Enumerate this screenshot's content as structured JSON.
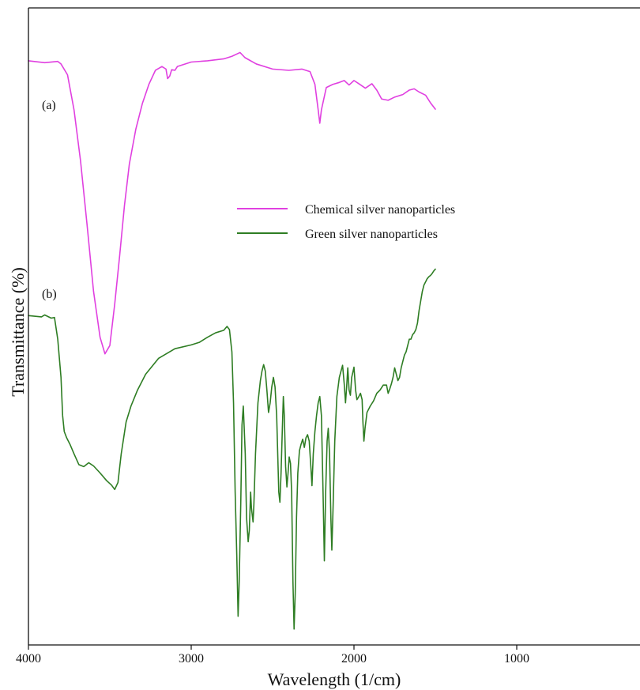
{
  "chart_data": {
    "type": "line",
    "title": "",
    "xlabel": "Wavelength (1/cm)",
    "ylabel": "Transmittance (%)",
    "xlim": [
      4000,
      1500
    ],
    "x_ticks": [
      {
        "value": 4000,
        "label": "4000"
      },
      {
        "value": 3000,
        "label": "3000"
      },
      {
        "value": 2000,
        "label": "2000"
      },
      {
        "value": 1000,
        "label": "1000"
      }
    ],
    "y_ticks_shown": false,
    "grid": false,
    "legend_position": "center",
    "panel_labels": [
      {
        "text": "(a)",
        "series": "Chemical silver nanoparticles"
      },
      {
        "text": "(b)",
        "series": "Green silver nanoparticles"
      }
    ],
    "series": [
      {
        "name": "Chemical silver nanoparticles",
        "label": "(a)",
        "color": "#e040e0",
        "y_scale": "relative transmittance, 100 = top of plot",
        "points": [
          [
            4000,
            91.7
          ],
          [
            3900,
            91.4
          ],
          [
            3820,
            91.6
          ],
          [
            3800,
            91.2
          ],
          [
            3760,
            89.5
          ],
          [
            3720,
            84.0
          ],
          [
            3680,
            76.0
          ],
          [
            3640,
            66.0
          ],
          [
            3600,
            55.5
          ],
          [
            3560,
            48.3
          ],
          [
            3530,
            45.7
          ],
          [
            3500,
            47.0
          ],
          [
            3470,
            53.5
          ],
          [
            3440,
            61.0
          ],
          [
            3410,
            69.0
          ],
          [
            3380,
            75.5
          ],
          [
            3340,
            81.0
          ],
          [
            3300,
            85.0
          ],
          [
            3260,
            88.0
          ],
          [
            3220,
            90.2
          ],
          [
            3180,
            90.8
          ],
          [
            3155,
            90.4
          ],
          [
            3145,
            88.9
          ],
          [
            3132,
            89.3
          ],
          [
            3120,
            90.3
          ],
          [
            3100,
            90.2
          ],
          [
            3085,
            90.8
          ],
          [
            3000,
            91.5
          ],
          [
            2900,
            91.7
          ],
          [
            2800,
            92.0
          ],
          [
            2750,
            92.4
          ],
          [
            2700,
            93.0
          ],
          [
            2670,
            92.2
          ],
          [
            2600,
            91.2
          ],
          [
            2500,
            90.4
          ],
          [
            2400,
            90.2
          ],
          [
            2320,
            90.4
          ],
          [
            2270,
            90.0
          ],
          [
            2240,
            88.0
          ],
          [
            2220,
            84.0
          ],
          [
            2210,
            81.9
          ],
          [
            2200,
            84.0
          ],
          [
            2170,
            87.5
          ],
          [
            2130,
            88.0
          ],
          [
            2090,
            88.3
          ],
          [
            2060,
            88.6
          ],
          [
            2030,
            87.9
          ],
          [
            2000,
            88.6
          ],
          [
            1970,
            88.1
          ],
          [
            1930,
            87.4
          ],
          [
            1890,
            88.1
          ],
          [
            1860,
            87.1
          ],
          [
            1830,
            85.7
          ],
          [
            1790,
            85.5
          ],
          [
            1750,
            86.0
          ],
          [
            1700,
            86.4
          ],
          [
            1660,
            87.1
          ],
          [
            1630,
            87.3
          ],
          [
            1600,
            86.8
          ],
          [
            1560,
            86.3
          ],
          [
            1530,
            85.1
          ],
          [
            1500,
            84.1
          ]
        ]
      },
      {
        "name": "Green silver nanoparticles",
        "label": "(b)",
        "color": "#2e7d23",
        "y_scale": "relative transmittance, 100 = top of plot",
        "points": [
          [
            4000,
            51.7
          ],
          [
            3920,
            51.5
          ],
          [
            3900,
            51.8
          ],
          [
            3860,
            51.3
          ],
          [
            3840,
            51.4
          ],
          [
            3820,
            48.0
          ],
          [
            3800,
            42.0
          ],
          [
            3790,
            36.0
          ],
          [
            3780,
            33.5
          ],
          [
            3765,
            32.5
          ],
          [
            3745,
            31.5
          ],
          [
            3720,
            30.0
          ],
          [
            3690,
            28.3
          ],
          [
            3660,
            28.0
          ],
          [
            3630,
            28.6
          ],
          [
            3600,
            28.1
          ],
          [
            3560,
            27.0
          ],
          [
            3520,
            25.8
          ],
          [
            3490,
            25.1
          ],
          [
            3470,
            24.4
          ],
          [
            3450,
            25.5
          ],
          [
            3430,
            30.0
          ],
          [
            3400,
            35.0
          ],
          [
            3370,
            37.5
          ],
          [
            3330,
            40.0
          ],
          [
            3280,
            42.5
          ],
          [
            3200,
            45.0
          ],
          [
            3100,
            46.5
          ],
          [
            3000,
            47.1
          ],
          [
            2950,
            47.5
          ],
          [
            2900,
            48.3
          ],
          [
            2850,
            49.0
          ],
          [
            2800,
            49.4
          ],
          [
            2780,
            50.0
          ],
          [
            2765,
            49.5
          ],
          [
            2750,
            46.0
          ],
          [
            2740,
            38.0
          ],
          [
            2730,
            24.0
          ],
          [
            2720,
            14.0
          ],
          [
            2712,
            4.5
          ],
          [
            2705,
            10.0
          ],
          [
            2695,
            23.0
          ],
          [
            2688,
            34.5
          ],
          [
            2680,
            37.5
          ],
          [
            2668,
            30.0
          ],
          [
            2660,
            20.0
          ],
          [
            2650,
            16.2
          ],
          [
            2643,
            18.0
          ],
          [
            2635,
            24.0
          ],
          [
            2630,
            21.5
          ],
          [
            2620,
            19.3
          ],
          [
            2615,
            22.0
          ],
          [
            2605,
            30.0
          ],
          [
            2590,
            38.0
          ],
          [
            2575,
            41.5
          ],
          [
            2565,
            43.0
          ],
          [
            2555,
            44.0
          ],
          [
            2545,
            43.0
          ],
          [
            2535,
            40.0
          ],
          [
            2525,
            36.5
          ],
          [
            2515,
            38.0
          ],
          [
            2505,
            40.5
          ],
          [
            2495,
            42.0
          ],
          [
            2485,
            40.5
          ],
          [
            2475,
            36.0
          ],
          [
            2462,
            24.0
          ],
          [
            2455,
            22.4
          ],
          [
            2448,
            27.0
          ],
          [
            2440,
            34.0
          ],
          [
            2434,
            39.0
          ],
          [
            2428,
            36.0
          ],
          [
            2420,
            28.0
          ],
          [
            2412,
            24.8
          ],
          [
            2405,
            27.0
          ],
          [
            2398,
            29.5
          ],
          [
            2390,
            28.5
          ],
          [
            2383,
            24.0
          ],
          [
            2375,
            10.0
          ],
          [
            2368,
            2.5
          ],
          [
            2361,
            8.0
          ],
          [
            2353,
            20.0
          ],
          [
            2345,
            27.0
          ],
          [
            2335,
            30.5
          ],
          [
            2325,
            31.5
          ],
          [
            2315,
            32.3
          ],
          [
            2305,
            31.0
          ],
          [
            2295,
            32.5
          ],
          [
            2285,
            33.0
          ],
          [
            2275,
            32.0
          ],
          [
            2265,
            28.0
          ],
          [
            2258,
            25.0
          ],
          [
            2250,
            30.0
          ],
          [
            2240,
            33.5
          ],
          [
            2230,
            36.0
          ],
          [
            2220,
            38.0
          ],
          [
            2210,
            39.0
          ],
          [
            2200,
            36.0
          ],
          [
            2190,
            24.0
          ],
          [
            2182,
            13.2
          ],
          [
            2174,
            24.0
          ],
          [
            2165,
            32.0
          ],
          [
            2158,
            34.0
          ],
          [
            2150,
            30.0
          ],
          [
            2142,
            20.0
          ],
          [
            2136,
            14.9
          ],
          [
            2128,
            22.0
          ],
          [
            2118,
            32.0
          ],
          [
            2105,
            39.0
          ],
          [
            2090,
            42.0
          ],
          [
            2070,
            43.9
          ],
          [
            2060,
            41.0
          ],
          [
            2052,
            38.0
          ],
          [
            2045,
            40.5
          ],
          [
            2038,
            43.5
          ],
          [
            2030,
            40.0
          ],
          [
            2022,
            39.2
          ],
          [
            2014,
            42.0
          ],
          [
            2000,
            43.6
          ],
          [
            1990,
            40.0
          ],
          [
            1982,
            38.5
          ],
          [
            1970,
            39.0
          ],
          [
            1960,
            39.5
          ],
          [
            1950,
            38.5
          ],
          [
            1945,
            35.0
          ],
          [
            1939,
            32.0
          ],
          [
            1932,
            34.0
          ],
          [
            1920,
            36.5
          ],
          [
            1900,
            37.5
          ],
          [
            1880,
            38.3
          ],
          [
            1860,
            39.5
          ],
          [
            1840,
            40.0
          ],
          [
            1820,
            40.8
          ],
          [
            1800,
            40.8
          ],
          [
            1790,
            39.5
          ],
          [
            1780,
            40.2
          ],
          [
            1770,
            41.0
          ],
          [
            1760,
            42.0
          ],
          [
            1750,
            43.5
          ],
          [
            1740,
            42.5
          ],
          [
            1730,
            41.5
          ],
          [
            1720,
            42.0
          ],
          [
            1710,
            43.5
          ],
          [
            1700,
            44.5
          ],
          [
            1690,
            45.5
          ],
          [
            1680,
            46.0
          ],
          [
            1670,
            47.0
          ],
          [
            1660,
            48.0
          ],
          [
            1650,
            48.0
          ],
          [
            1640,
            48.7
          ],
          [
            1630,
            49.0
          ],
          [
            1620,
            49.5
          ],
          [
            1610,
            50.5
          ],
          [
            1600,
            52.5
          ],
          [
            1590,
            54.0
          ],
          [
            1580,
            55.5
          ],
          [
            1570,
            56.5
          ],
          [
            1560,
            57.0
          ],
          [
            1550,
            57.5
          ],
          [
            1540,
            57.8
          ],
          [
            1530,
            58.0
          ],
          [
            1520,
            58.3
          ],
          [
            1510,
            58.7
          ],
          [
            1500,
            59.0
          ]
        ]
      }
    ]
  }
}
